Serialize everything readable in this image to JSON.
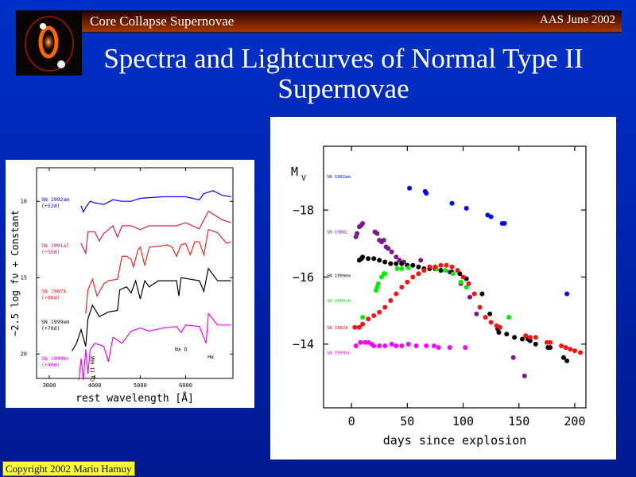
{
  "header": {
    "section": "Core Collapse Supernovae",
    "event": "AAS June 2002"
  },
  "title": {
    "line1": "Spectra and Lightcurves of Normal Type II",
    "line2": "Supernovae"
  },
  "footer": {
    "copyright": "Copyright 2002 Mario Hamuy"
  },
  "colors": {
    "background": "#0030c8",
    "header_bar": "#a83a00",
    "copyright_bg": "#ffff33"
  },
  "chart_data": [
    {
      "type": "line",
      "xlabel": "rest wavelength [Å]",
      "ylabel": "−2.5 log fν + Constant",
      "xlim": [
        2720,
        7040
      ],
      "ylim": [
        7.8,
        21.6
      ],
      "y_inverted": true,
      "xticks": [
        3000,
        4000,
        5000,
        6000
      ],
      "yticks": [
        10,
        15,
        20
      ],
      "annotations": [
        {
          "text": "Ca II H&K",
          "x": 3950,
          "y": 21.8,
          "vertical": true
        },
        {
          "text": "Na D",
          "x": 5900,
          "y": 19.8
        },
        {
          "text": "Hα",
          "x": 6550,
          "y": 20.3
        }
      ],
      "series": [
        {
          "name": "SN 1992am",
          "epoch": "(+52d)",
          "color": "#0000ff",
          "label_y": 10,
          "x": [
            3700,
            3750,
            3800,
            3900,
            4000,
            4200,
            4400,
            4600,
            4800,
            5000,
            5500,
            6000,
            6300,
            6400,
            6600,
            6800,
            7000
          ],
          "y": [
            10.3,
            10.7,
            10.4,
            10.0,
            10.1,
            10.2,
            9.9,
            10.0,
            10.0,
            9.8,
            9.7,
            9.7,
            9.9,
            9.5,
            9.3,
            9.6,
            9.7
          ]
        },
        {
          "name": "SN 1991al",
          "epoch": "(+55d)",
          "color": "#cc2255",
          "label_y": 13,
          "x": [
            3700,
            3800,
            3850,
            4000,
            4100,
            4200,
            4400,
            4500,
            4600,
            4800,
            5000,
            5200,
            5800,
            6000,
            6300,
            6500,
            6800,
            7000
          ],
          "y": [
            12.75,
            13.4,
            12.0,
            12.0,
            12.6,
            12.1,
            11.6,
            12.35,
            11.6,
            11.6,
            11.85,
            11.6,
            11.6,
            11.4,
            11.8,
            10.65,
            11.2,
            11.4
          ]
        },
        {
          "name": "SN 1987A",
          "epoch": "(+80d)",
          "color": "#ff2020",
          "label_y": 16,
          "x": [
            3800,
            3850,
            3950,
            4050,
            4200,
            4300,
            4500,
            4600,
            4700,
            4800,
            4850,
            4950,
            5000,
            5100,
            5200,
            5400,
            5600,
            5700,
            5800,
            5900,
            6000,
            6100,
            6200,
            6300,
            6400,
            6500,
            6700,
            6900,
            7000
          ],
          "y": [
            17.35,
            15.8,
            15.1,
            16.2,
            15.4,
            15.2,
            15.1,
            13.6,
            13.6,
            13.8,
            14.3,
            13.2,
            13.0,
            14.2,
            13.0,
            12.95,
            12.85,
            13.0,
            13.6,
            12.85,
            12.75,
            13.5,
            12.65,
            12.65,
            13.5,
            11.85,
            12.05,
            12.75,
            12.65
          ]
        },
        {
          "name": "SN 1999em",
          "epoch": "(+70d)",
          "color": "#000000",
          "label_y": 18,
          "x": [
            3500,
            3600,
            3700,
            3800,
            3850,
            3950,
            4100,
            4300,
            4500,
            4550,
            4700,
            4800,
            4900,
            5000,
            5100,
            5200,
            5400,
            5600,
            5800,
            5850,
            5900,
            6100,
            6300,
            6400,
            6500,
            6700,
            7000
          ],
          "y": [
            19.8,
            19.3,
            18.4,
            19.5,
            17.7,
            16.8,
            17.55,
            17.25,
            17.15,
            15.8,
            15.6,
            16.0,
            15.2,
            16.4,
            15.2,
            15.6,
            15.2,
            15.2,
            15.2,
            16.2,
            15.0,
            15.1,
            15.2,
            15.9,
            14.4,
            15.2,
            15.2
          ]
        },
        {
          "name": "SN 1999br",
          "epoch": "(+40d)",
          "color": "#ff00ff",
          "label_y": 20.4,
          "x": [
            3650,
            3700,
            3750,
            3800,
            3850,
            3900,
            4000,
            4200,
            4300,
            4400,
            4600,
            4800,
            5000,
            5200,
            5500,
            5800,
            5900,
            6000,
            6300,
            6450,
            6500,
            6700,
            7000
          ],
          "y": [
            21.7,
            20.3,
            21.7,
            19.7,
            21.3,
            19.7,
            19.3,
            19.5,
            20.5,
            18.9,
            19.3,
            18.5,
            18.3,
            18.5,
            18.3,
            18.2,
            18.6,
            18.1,
            18.2,
            19.3,
            17.35,
            18.1,
            18.1
          ]
        }
      ]
    },
    {
      "type": "scatter",
      "xlabel": "days since explosion",
      "ylabel": "M",
      "ylabel_sub": "V",
      "xlim": [
        -25,
        210
      ],
      "ylim": [
        -19.9,
        -12.1
      ],
      "y_inverted": true,
      "xticks": [
        0,
        50,
        100,
        150,
        200
      ],
      "yticks": [
        -18,
        -16,
        -14
      ],
      "series": [
        {
          "name": "SN 1992am",
          "color": "#0000ff",
          "label_y": -19.0,
          "x": [
            52,
            66,
            67,
            90,
            103,
            122,
            125,
            135,
            137,
            193
          ],
          "y": [
            -18.65,
            -18.55,
            -18.5,
            -18.2,
            -18.05,
            -17.85,
            -17.8,
            -17.6,
            -17.6,
            -15.5
          ]
        },
        {
          "name": "SN 1986L",
          "color": "#7a1a8a",
          "label_y": -17.35,
          "x": [
            4,
            5,
            7,
            9,
            10,
            21,
            23,
            25,
            27,
            29,
            31,
            33,
            36,
            40,
            43,
            47,
            62,
            88,
            98,
            106,
            112,
            145,
            155
          ],
          "y": [
            -17.2,
            -17.3,
            -17.5,
            -17.55,
            -17.6,
            -17.35,
            -17.3,
            -17.1,
            -17.05,
            -17.1,
            -16.9,
            -16.85,
            -16.75,
            -16.6,
            -16.5,
            -16.45,
            -16.5,
            -16.15,
            -15.8,
            -15.4,
            -14.9,
            -13.6,
            -13.05
          ]
        },
        {
          "name": "SN 1999em",
          "color": "#000000",
          "label_y": -16.05,
          "x": [
            7,
            9,
            10,
            15,
            20,
            25,
            30,
            35,
            40,
            45,
            50,
            55,
            60,
            65,
            70,
            75,
            80,
            90,
            97,
            103,
            117,
            124,
            131,
            132,
            139,
            146,
            153,
            158,
            160,
            165,
            176,
            178,
            190,
            193
          ],
          "y": [
            -16.5,
            -16.55,
            -16.6,
            -16.55,
            -16.55,
            -16.5,
            -16.45,
            -16.4,
            -16.4,
            -16.4,
            -16.35,
            -16.35,
            -16.3,
            -16.25,
            -16.25,
            -16.25,
            -16.2,
            -16.15,
            -16.1,
            -15.95,
            -15.5,
            -14.9,
            -14.45,
            -14.35,
            -14.3,
            -14.2,
            -14.15,
            -14.15,
            -14.1,
            -14.0,
            -13.9,
            -13.9,
            -13.6,
            -13.5
          ]
        },
        {
          "name": "SN 2000cb",
          "color": "#00ee00",
          "label_y": -15.3,
          "x": [
            10,
            22,
            23,
            24,
            27,
            29,
            30,
            41,
            45,
            51,
            76,
            84,
            91,
            98,
            103,
            141
          ],
          "y": [
            -14.8,
            -15.6,
            -15.7,
            -15.8,
            -16.0,
            -16.1,
            -16.1,
            -16.25,
            -16.25,
            -16.28,
            -16.25,
            -16.2,
            -16.1,
            -15.85,
            -15.7,
            -14.8
          ]
        },
        {
          "name": "SN 1987A",
          "color": "#ff1010",
          "label_y": -14.5,
          "x": [
            3,
            7,
            10,
            15,
            20,
            25,
            30,
            35,
            40,
            45,
            50,
            55,
            60,
            65,
            70,
            75,
            80,
            85,
            90,
            95,
            100,
            105,
            110,
            115,
            120,
            125,
            130,
            133,
            156,
            160,
            165,
            175,
            178,
            188,
            192,
            196,
            200,
            205
          ],
          "y": [
            -14.5,
            -14.5,
            -14.6,
            -14.75,
            -14.85,
            -14.95,
            -15.1,
            -15.3,
            -15.5,
            -15.7,
            -15.85,
            -16.0,
            -16.1,
            -16.2,
            -16.3,
            -16.3,
            -16.35,
            -16.35,
            -16.3,
            -16.2,
            -16.0,
            -15.8,
            -15.5,
            -15.1,
            -14.8,
            -14.65,
            -14.55,
            -14.5,
            -14.25,
            -14.2,
            -14.2,
            -14.05,
            -14.05,
            -13.95,
            -13.9,
            -13.85,
            -13.8,
            -13.75
          ]
        },
        {
          "name": "SN 1999br",
          "color": "#ff00ff",
          "label_y": -13.75,
          "x": [
            4,
            8,
            12,
            15,
            18,
            20,
            25,
            30,
            36,
            40,
            45,
            51,
            58,
            67,
            74,
            78,
            88,
            102
          ],
          "y": [
            -13.95,
            -14.05,
            -14.05,
            -14.05,
            -14.0,
            -13.95,
            -13.95,
            -13.95,
            -14.0,
            -13.95,
            -13.95,
            -14.0,
            -13.95,
            -13.95,
            -13.95,
            -13.9,
            -13.9,
            -13.9
          ]
        }
      ]
    }
  ]
}
